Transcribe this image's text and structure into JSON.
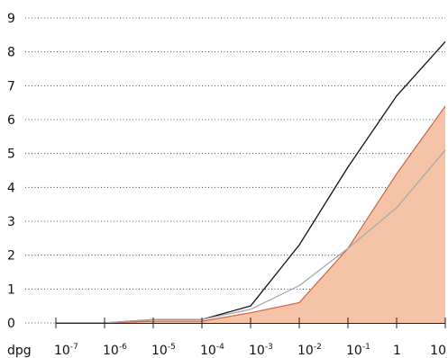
{
  "chart_data": {
    "type": "line",
    "xlabel": "dpg",
    "ylabel": "",
    "x": [
      "10-7",
      "10-6",
      "10-5",
      "10-4",
      "10-3",
      "10-2",
      "10-1",
      "1",
      "10"
    ],
    "x_tick_labels": [
      {
        "base": "10",
        "exp": "-7"
      },
      {
        "base": "10",
        "exp": "-6"
      },
      {
        "base": "10",
        "exp": "-5"
      },
      {
        "base": "10",
        "exp": "-4"
      },
      {
        "base": "10",
        "exp": "-3"
      },
      {
        "base": "10",
        "exp": "-2"
      },
      {
        "base": "10",
        "exp": "-1"
      },
      {
        "base": "1",
        "exp": ""
      },
      {
        "base": "10",
        "exp": ""
      }
    ],
    "x_scale": "log",
    "y_ticks": [
      0,
      1,
      2,
      3,
      4,
      5,
      6,
      7,
      8,
      9
    ],
    "ylim": [
      0,
      9
    ],
    "grid": "horizontal dotted",
    "series": [
      {
        "style": "filled-area",
        "color": "#f4c3a8",
        "stroke": "#d9603f",
        "values": [
          0,
          0,
          0.05,
          0.05,
          0.3,
          0.6,
          2.2,
          4.4,
          6.4
        ]
      },
      {
        "style": "line",
        "color": "#111111",
        "values": [
          0,
          0,
          0.1,
          0.1,
          0.5,
          2.3,
          4.6,
          6.7,
          8.3
        ]
      },
      {
        "style": "line",
        "color": "#a9a9a9",
        "values": [
          0,
          0,
          0.1,
          0.1,
          0.4,
          1.1,
          2.2,
          3.4,
          5.1
        ]
      }
    ]
  }
}
